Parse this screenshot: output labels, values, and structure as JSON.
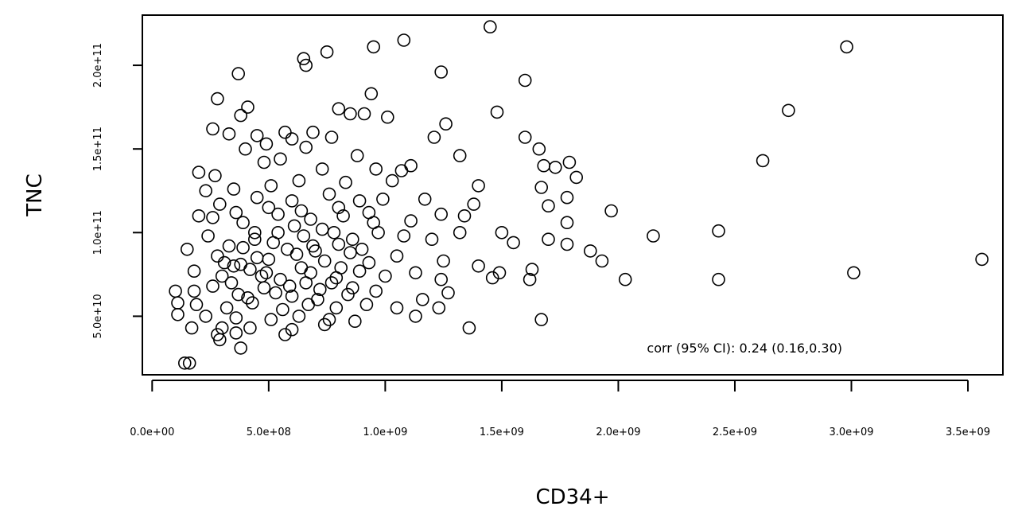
{
  "chart_data": {
    "type": "scatter",
    "title": "",
    "xlabel": "CD34+",
    "ylabel": "TNC",
    "xlim": [
      -42000000.0,
      3650000000.0
    ],
    "ylim": [
      15000000000.0,
      230000000000.0
    ],
    "xticks": [
      0,
      500000000.0,
      1000000000.0,
      1500000000.0,
      2000000000.0,
      2500000000.0,
      3000000000.0,
      3500000000.0
    ],
    "xtick_labels": [
      "0.0e+00",
      "5.0e+08",
      "1.0e+09",
      "1.5e+09",
      "2.0e+09",
      "2.5e+09",
      "3.0e+09",
      "3.5e+09"
    ],
    "yticks": [
      50000000000.0,
      100000000000.0,
      150000000000.0,
      200000000000.0
    ],
    "ytick_labels": [
      "5.0e+10",
      "1.0e+11",
      "1.5e+11",
      "2.0e+11"
    ],
    "annotation": "corr (95% CI): 0.24 (0.16,0.30)",
    "point_style": "open-circle",
    "points": [
      [
        1450000000.0,
        223000000000.0
      ],
      [
        950000000.0,
        211000000000.0
      ],
      [
        1080000000.0,
        215000000000.0
      ],
      [
        750000000.0,
        208000000000.0
      ],
      [
        650000000.0,
        204000000000.0
      ],
      [
        660000000.0,
        200000000000.0
      ],
      [
        1240000000.0,
        196000000000.0
      ],
      [
        370000000.0,
        195000000000.0
      ],
      [
        1600000000.0,
        191000000000.0
      ],
      [
        940000000.0,
        183000000000.0
      ],
      [
        280000000.0,
        180000000000.0
      ],
      [
        410000000.0,
        175000000000.0
      ],
      [
        800000000.0,
        174000000000.0
      ],
      [
        380000000.0,
        170000000000.0
      ],
      [
        850000000.0,
        171000000000.0
      ],
      [
        910000000.0,
        171000000000.0
      ],
      [
        1480000000.0,
        172000000000.0
      ],
      [
        1010000000.0,
        169000000000.0
      ],
      [
        1260000000.0,
        165000000000.0
      ],
      [
        260000000.0,
        162000000000.0
      ],
      [
        570000000.0,
        160000000000.0
      ],
      [
        690000000.0,
        160000000000.0
      ],
      [
        330000000.0,
        159000000000.0
      ],
      [
        600000000.0,
        156000000000.0
      ],
      [
        450000000.0,
        158000000000.0
      ],
      [
        770000000.0,
        157000000000.0
      ],
      [
        1210000000.0,
        157000000000.0
      ],
      [
        1600000000.0,
        157000000000.0
      ],
      [
        490000000.0,
        153000000000.0
      ],
      [
        660000000.0,
        151000000000.0
      ],
      [
        400000000.0,
        150000000000.0
      ],
      [
        550000000.0,
        144000000000.0
      ],
      [
        880000000.0,
        146000000000.0
      ],
      [
        1320000000.0,
        146000000000.0
      ],
      [
        1660000000.0,
        150000000000.0
      ],
      [
        1790000000.0,
        142000000000.0
      ],
      [
        200000000.0,
        136000000000.0
      ],
      [
        270000000.0,
        134000000000.0
      ],
      [
        480000000.0,
        142000000000.0
      ],
      [
        730000000.0,
        138000000000.0
      ],
      [
        960000000.0,
        138000000000.0
      ],
      [
        1070000000.0,
        137000000000.0
      ],
      [
        1110000000.0,
        140000000000.0
      ],
      [
        1680000000.0,
        140000000000.0
      ],
      [
        1730000000.0,
        139000000000.0
      ],
      [
        1820000000.0,
        133000000000.0
      ],
      [
        230000000.0,
        125000000000.0
      ],
      [
        350000000.0,
        126000000000.0
      ],
      [
        510000000.0,
        128000000000.0
      ],
      [
        630000000.0,
        131000000000.0
      ],
      [
        830000000.0,
        130000000000.0
      ],
      [
        1030000000.0,
        131000000000.0
      ],
      [
        1400000000.0,
        128000000000.0
      ],
      [
        1670000000.0,
        127000000000.0
      ],
      [
        1780000000.0,
        121000000000.0
      ],
      [
        200000000.0,
        110000000000.0
      ],
      [
        290000000.0,
        117000000000.0
      ],
      [
        450000000.0,
        121000000000.0
      ],
      [
        600000000.0,
        119000000000.0
      ],
      [
        760000000.0,
        123000000000.0
      ],
      [
        890000000.0,
        119000000000.0
      ],
      [
        990000000.0,
        120000000000.0
      ],
      [
        1170000000.0,
        120000000000.0
      ],
      [
        1380000000.0,
        117000000000.0
      ],
      [
        1700000000.0,
        116000000000.0
      ],
      [
        1970000000.0,
        113000000000.0
      ],
      [
        260000000.0,
        109000000000.0
      ],
      [
        390000000.0,
        106000000000.0
      ],
      [
        540000000.0,
        111000000000.0
      ],
      [
        680000000.0,
        108000000000.0
      ],
      [
        820000000.0,
        110000000000.0
      ],
      [
        950000000.0,
        106000000000.0
      ],
      [
        1110000000.0,
        107000000000.0
      ],
      [
        1240000000.0,
        111000000000.0
      ],
      [
        1340000000.0,
        110000000000.0
      ],
      [
        1780000000.0,
        106000000000.0
      ],
      [
        150000000.0,
        90000000000.0
      ],
      [
        240000000.0,
        98000000000.0
      ],
      [
        330000000.0,
        92000000000.0
      ],
      [
        440000000.0,
        96000000000.0
      ],
      [
        540000000.0,
        100000000000.0
      ],
      [
        650000000.0,
        98000000000.0
      ],
      [
        730000000.0,
        102000000000.0
      ],
      [
        860000000.0,
        96000000000.0
      ],
      [
        970000000.0,
        100000000000.0
      ],
      [
        1080000000.0,
        98000000000.0
      ],
      [
        1200000000.0,
        96000000000.0
      ],
      [
        1320000000.0,
        100000000000.0
      ],
      [
        1500000000.0,
        100000000000.0
      ],
      [
        1550000000.0,
        94000000000.0
      ],
      [
        1700000000.0,
        96000000000.0
      ],
      [
        1780000000.0,
        93000000000.0
      ],
      [
        2150000000.0,
        98000000000.0
      ],
      [
        2430000000.0,
        101000000000.0
      ],
      [
        280000000.0,
        86000000000.0
      ],
      [
        380000000.0,
        81000000000.0
      ],
      [
        500000000.0,
        84000000000.0
      ],
      [
        620000000.0,
        87000000000.0
      ],
      [
        740000000.0,
        83000000000.0
      ],
      [
        850000000.0,
        88000000000.0
      ],
      [
        930000000.0,
        82000000000.0
      ],
      [
        1050000000.0,
        86000000000.0
      ],
      [
        1250000000.0,
        83000000000.0
      ],
      [
        1400000000.0,
        80000000000.0
      ],
      [
        1880000000.0,
        89000000000.0
      ],
      [
        1930000000.0,
        83000000000.0
      ],
      [
        3560000000.0,
        84000000000.0
      ],
      [
        180000000.0,
        77000000000.0
      ],
      [
        300000000.0,
        74000000000.0
      ],
      [
        420000000.0,
        78000000000.0
      ],
      [
        550000000.0,
        72000000000.0
      ],
      [
        680000000.0,
        76000000000.0
      ],
      [
        790000000.0,
        73000000000.0
      ],
      [
        890000000.0,
        77000000000.0
      ],
      [
        1000000000.0,
        74000000000.0
      ],
      [
        1130000000.0,
        76000000000.0
      ],
      [
        1240000000.0,
        72000000000.0
      ],
      [
        1460000000.0,
        73000000000.0
      ],
      [
        1490000000.0,
        76000000000.0
      ],
      [
        1620000000.0,
        72000000000.0
      ],
      [
        1630000000.0,
        78000000000.0
      ],
      [
        2030000000.0,
        72000000000.0
      ],
      [
        2430000000.0,
        72000000000.0
      ],
      [
        3010000000.0,
        76000000000.0
      ],
      [
        100000000.0,
        65000000000.0
      ],
      [
        180000000.0,
        65000000000.0
      ],
      [
        260000000.0,
        68000000000.0
      ],
      [
        370000000.0,
        63000000000.0
      ],
      [
        480000000.0,
        67000000000.0
      ],
      [
        600000000.0,
        62000000000.0
      ],
      [
        720000000.0,
        66000000000.0
      ],
      [
        840000000.0,
        63000000000.0
      ],
      [
        960000000.0,
        65000000000.0
      ],
      [
        1160000000.0,
        60000000000.0
      ],
      [
        1270000000.0,
        64000000000.0
      ],
      [
        110000000.0,
        58000000000.0
      ],
      [
        190000000.0,
        57000000000.0
      ],
      [
        320000000.0,
        55000000000.0
      ],
      [
        430000000.0,
        58000000000.0
      ],
      [
        560000000.0,
        54000000000.0
      ],
      [
        670000000.0,
        57000000000.0
      ],
      [
        790000000.0,
        55000000000.0
      ],
      [
        920000000.0,
        57000000000.0
      ],
      [
        1050000000.0,
        55000000000.0
      ],
      [
        1230000000.0,
        55000000000.0
      ],
      [
        110000000.0,
        51000000000.0
      ],
      [
        230000000.0,
        50000000000.0
      ],
      [
        360000000.0,
        49000000000.0
      ],
      [
        510000000.0,
        48000000000.0
      ],
      [
        630000000.0,
        50000000000.0
      ],
      [
        760000000.0,
        48000000000.0
      ],
      [
        870000000.0,
        47000000000.0
      ],
      [
        1130000000.0,
        50000000000.0
      ],
      [
        1670000000.0,
        48000000000.0
      ],
      [
        170000000.0,
        43000000000.0
      ],
      [
        300000000.0,
        43000000000.0
      ],
      [
        420000000.0,
        43000000000.0
      ],
      [
        600000000.0,
        42000000000.0
      ],
      [
        740000000.0,
        45000000000.0
      ],
      [
        1360000000.0,
        43000000000.0
      ],
      [
        280000000.0,
        39000000000.0
      ],
      [
        360000000.0,
        40000000000.0
      ],
      [
        570000000.0,
        39000000000.0
      ],
      [
        290000000.0,
        36000000000.0
      ],
      [
        380000000.0,
        31000000000.0
      ],
      [
        140000000.0,
        22000000000.0
      ],
      [
        160000000.0,
        22000000000.0
      ],
      [
        2620000000.0,
        143000000000.0
      ],
      [
        2730000000.0,
        173000000000.0
      ],
      [
        2980000000.0,
        211000000000.0
      ],
      [
        350000000.0,
        80000000000.0
      ],
      [
        450000000.0,
        85000000000.0
      ],
      [
        580000000.0,
        90000000000.0
      ],
      [
        700000000.0,
        89000000000.0
      ],
      [
        800000000.0,
        93000000000.0
      ],
      [
        340000000.0,
        70000000000.0
      ],
      [
        470000000.0,
        74000000000.0
      ],
      [
        640000000.0,
        79000000000.0
      ],
      [
        770000000.0,
        70000000000.0
      ],
      [
        390000000.0,
        91000000000.0
      ],
      [
        520000000.0,
        94000000000.0
      ],
      [
        690000000.0,
        92000000000.0
      ],
      [
        410000000.0,
        61000000000.0
      ],
      [
        530000000.0,
        64000000000.0
      ],
      [
        660000000.0,
        70000000000.0
      ],
      [
        810000000.0,
        79000000000.0
      ],
      [
        440000000.0,
        100000000000.0
      ],
      [
        610000000.0,
        104000000000.0
      ],
      [
        780000000.0,
        100000000000.0
      ],
      [
        900000000.0,
        90000000000.0
      ],
      [
        310000000.0,
        82000000000.0
      ],
      [
        490000000.0,
        76000000000.0
      ],
      [
        590000000.0,
        68000000000.0
      ],
      [
        710000000.0,
        60000000000.0
      ],
      [
        860000000.0,
        67000000000.0
      ],
      [
        360000000.0,
        112000000000.0
      ],
      [
        500000000.0,
        115000000000.0
      ],
      [
        640000000.0,
        113000000000.0
      ],
      [
        800000000.0,
        115000000000.0
      ],
      [
        930000000.0,
        112000000000.0
      ]
    ]
  }
}
